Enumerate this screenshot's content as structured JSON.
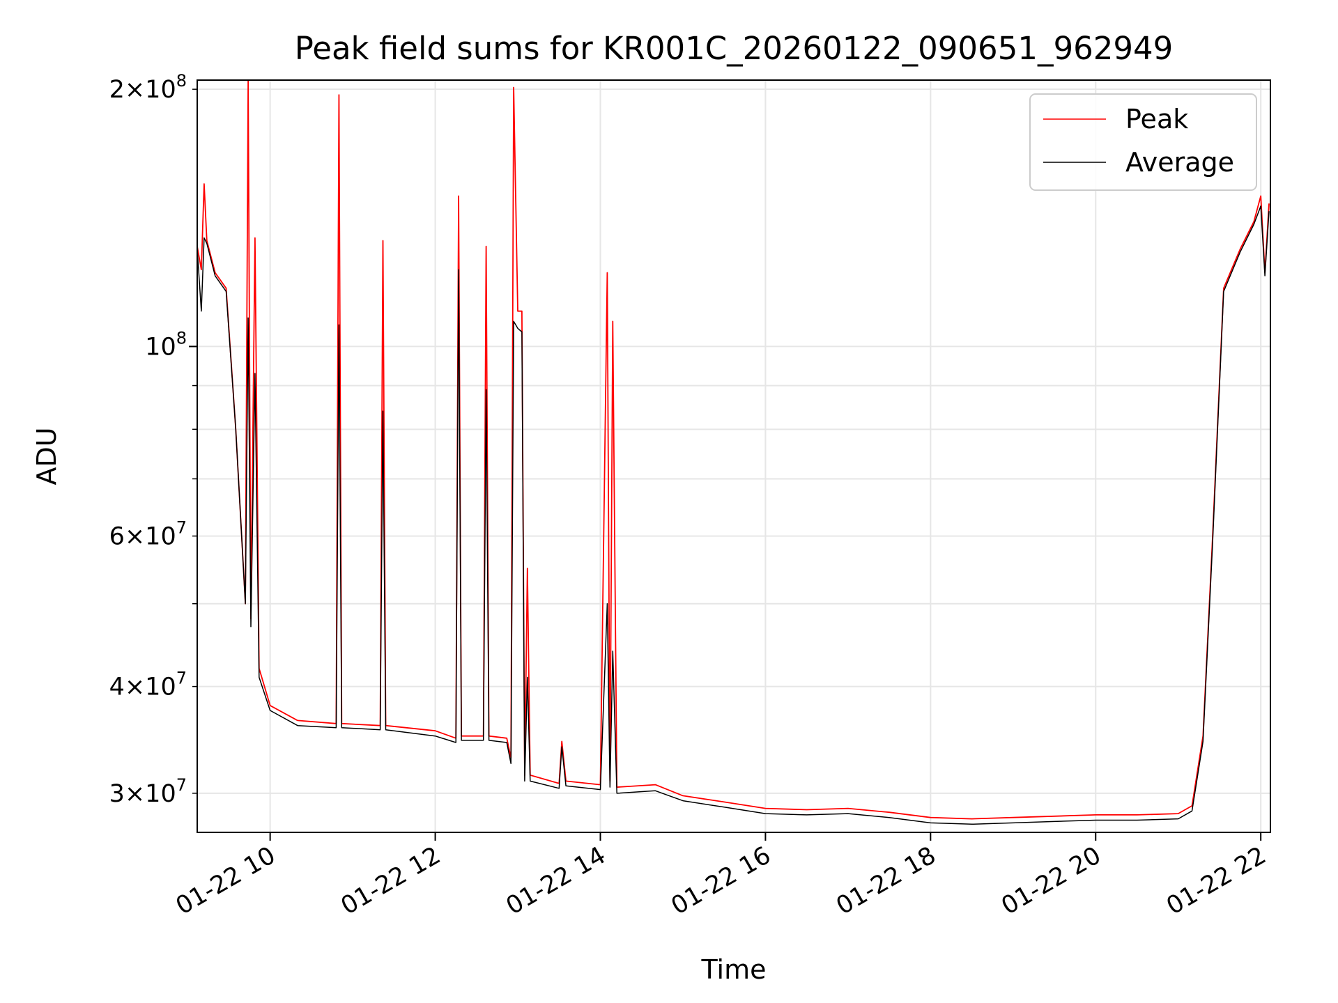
{
  "chart_data": {
    "type": "line",
    "title": "Peak field sums for KR001C_20260122_090651_962949",
    "xlabel": "Time",
    "ylabel": "ADU",
    "yscale": "log",
    "xlim": [
      "01-22 09:07",
      "01-22 22:07"
    ],
    "ylim": [
      27000000,
      205000000
    ],
    "grid": true,
    "legend_position": "top-right",
    "x_ticks": [
      {
        "value": "01-22 10:00",
        "label": "01-22 10"
      },
      {
        "value": "01-22 12:00",
        "label": "01-22 12"
      },
      {
        "value": "01-22 14:00",
        "label": "01-22 14"
      },
      {
        "value": "01-22 16:00",
        "label": "01-22 16"
      },
      {
        "value": "01-22 18:00",
        "label": "01-22 18"
      },
      {
        "value": "01-22 20:00",
        "label": "01-22 20"
      },
      {
        "value": "01-22 22:00",
        "label": "01-22 22"
      }
    ],
    "y_ticks": [
      {
        "value": 30000000,
        "mant": "3",
        "exp": "7"
      },
      {
        "value": 40000000,
        "mant": "4",
        "exp": "7"
      },
      {
        "value": 60000000,
        "mant": "6",
        "exp": "7"
      },
      {
        "value": 100000000,
        "mant": "",
        "exp": "8"
      },
      {
        "value": 200000000,
        "mant": "2",
        "exp": "8"
      }
    ],
    "series": [
      {
        "name": "Peak",
        "color": "#ff0000",
        "points": [
          [
            "01-22 09:07",
            131000000
          ],
          [
            "01-22 09:10",
            123000000
          ],
          [
            "01-22 09:12",
            155000000
          ],
          [
            "01-22 09:14",
            133000000
          ],
          [
            "01-22 09:20",
            122000000
          ],
          [
            "01-22 09:28",
            117000000
          ],
          [
            "01-22 09:35",
            80000000
          ],
          [
            "01-22 09:42",
            50000000
          ],
          [
            "01-22 09:44",
            205000000
          ],
          [
            "01-22 09:46",
            48000000
          ],
          [
            "01-22 09:49",
            134000000
          ],
          [
            "01-22 09:52",
            42000000
          ],
          [
            "01-22 10:00",
            38000000
          ],
          [
            "01-22 10:20",
            36500000
          ],
          [
            "01-22 10:48",
            36200000
          ],
          [
            "01-22 10:50",
            197000000
          ],
          [
            "01-22 10:52",
            36200000
          ],
          [
            "01-22 11:20",
            36000000
          ],
          [
            "01-22 11:22",
            133000000
          ],
          [
            "01-22 11:24",
            36000000
          ],
          [
            "01-22 12:00",
            35500000
          ],
          [
            "01-22 12:15",
            34800000
          ],
          [
            "01-22 12:17",
            150000000
          ],
          [
            "01-22 12:19",
            35000000
          ],
          [
            "01-22 12:35",
            35000000
          ],
          [
            "01-22 12:37",
            131000000
          ],
          [
            "01-22 12:39",
            35000000
          ],
          [
            "01-22 12:52",
            34800000
          ],
          [
            "01-22 12:55",
            33000000
          ],
          [
            "01-22 12:57",
            201000000
          ],
          [
            "01-22 13:00",
            110000000
          ],
          [
            "01-22 13:03",
            110000000
          ],
          [
            "01-22 13:05",
            31500000
          ],
          [
            "01-22 13:07",
            55000000
          ],
          [
            "01-22 13:09",
            31500000
          ],
          [
            "01-22 13:30",
            30800000
          ],
          [
            "01-22 13:32",
            34500000
          ],
          [
            "01-22 13:35",
            31000000
          ],
          [
            "01-22 14:00",
            30700000
          ],
          [
            "01-22 14:05",
            122000000
          ],
          [
            "01-22 14:07",
            31000000
          ],
          [
            "01-22 14:09",
            107000000
          ],
          [
            "01-22 14:12",
            30500000
          ],
          [
            "01-22 14:40",
            30700000
          ],
          [
            "01-22 15:00",
            29800000
          ],
          [
            "01-22 15:30",
            29300000
          ],
          [
            "01-22 16:00",
            28800000
          ],
          [
            "01-22 16:30",
            28700000
          ],
          [
            "01-22 17:00",
            28800000
          ],
          [
            "01-22 17:30",
            28500000
          ],
          [
            "01-22 18:00",
            28100000
          ],
          [
            "01-22 18:30",
            28000000
          ],
          [
            "01-22 19:00",
            28100000
          ],
          [
            "01-22 19:30",
            28200000
          ],
          [
            "01-22 20:00",
            28300000
          ],
          [
            "01-22 20:30",
            28300000
          ],
          [
            "01-22 21:00",
            28400000
          ],
          [
            "01-22 21:10",
            29000000
          ],
          [
            "01-22 21:18",
            35000000
          ],
          [
            "01-22 21:25",
            60000000
          ],
          [
            "01-22 21:33",
            117000000
          ],
          [
            "01-22 21:45",
            130000000
          ],
          [
            "01-22 21:55",
            140000000
          ],
          [
            "01-22 22:00",
            150000000
          ],
          [
            "01-22 22:03",
            122000000
          ],
          [
            "01-22 22:06",
            147000000
          ]
        ]
      },
      {
        "name": "Average",
        "color": "#000000",
        "points": [
          [
            "01-22 09:07",
            130000000
          ],
          [
            "01-22 09:10",
            110000000
          ],
          [
            "01-22 09:12",
            134000000
          ],
          [
            "01-22 09:14",
            132000000
          ],
          [
            "01-22 09:20",
            121000000
          ],
          [
            "01-22 09:28",
            116000000
          ],
          [
            "01-22 09:35",
            80000000
          ],
          [
            "01-22 09:42",
            50000000
          ],
          [
            "01-22 09:44",
            108000000
          ],
          [
            "01-22 09:46",
            47000000
          ],
          [
            "01-22 09:49",
            93000000
          ],
          [
            "01-22 09:52",
            41000000
          ],
          [
            "01-22 10:00",
            37500000
          ],
          [
            "01-22 10:20",
            36000000
          ],
          [
            "01-22 10:48",
            35800000
          ],
          [
            "01-22 10:50",
            106000000
          ],
          [
            "01-22 10:52",
            35800000
          ],
          [
            "01-22 11:20",
            35600000
          ],
          [
            "01-22 11:22",
            84000000
          ],
          [
            "01-22 11:24",
            35600000
          ],
          [
            "01-22 12:00",
            35000000
          ],
          [
            "01-22 12:15",
            34400000
          ],
          [
            "01-22 12:17",
            123000000
          ],
          [
            "01-22 12:19",
            34600000
          ],
          [
            "01-22 12:35",
            34600000
          ],
          [
            "01-22 12:37",
            89000000
          ],
          [
            "01-22 12:39",
            34600000
          ],
          [
            "01-22 12:52",
            34400000
          ],
          [
            "01-22 12:55",
            32500000
          ],
          [
            "01-22 12:57",
            107000000
          ],
          [
            "01-22 13:00",
            105000000
          ],
          [
            "01-22 13:03",
            104000000
          ],
          [
            "01-22 13:05",
            31000000
          ],
          [
            "01-22 13:07",
            41000000
          ],
          [
            "01-22 13:09",
            31000000
          ],
          [
            "01-22 13:30",
            30400000
          ],
          [
            "01-22 13:32",
            34000000
          ],
          [
            "01-22 13:35",
            30600000
          ],
          [
            "01-22 14:00",
            30300000
          ],
          [
            "01-22 14:05",
            50000000
          ],
          [
            "01-22 14:07",
            30500000
          ],
          [
            "01-22 14:09",
            44000000
          ],
          [
            "01-22 14:12",
            30000000
          ],
          [
            "01-22 14:40",
            30200000
          ],
          [
            "01-22 15:00",
            29400000
          ],
          [
            "01-22 15:30",
            28900000
          ],
          [
            "01-22 16:00",
            28400000
          ],
          [
            "01-22 16:30",
            28300000
          ],
          [
            "01-22 17:00",
            28400000
          ],
          [
            "01-22 17:30",
            28100000
          ],
          [
            "01-22 18:00",
            27700000
          ],
          [
            "01-22 18:30",
            27600000
          ],
          [
            "01-22 19:00",
            27700000
          ],
          [
            "01-22 19:30",
            27800000
          ],
          [
            "01-22 20:00",
            27900000
          ],
          [
            "01-22 20:30",
            27900000
          ],
          [
            "01-22 21:00",
            28000000
          ],
          [
            "01-22 21:10",
            28600000
          ],
          [
            "01-22 21:18",
            34500000
          ],
          [
            "01-22 21:25",
            59000000
          ],
          [
            "01-22 21:33",
            116000000
          ],
          [
            "01-22 21:45",
            129000000
          ],
          [
            "01-22 21:55",
            139000000
          ],
          [
            "01-22 22:00",
            146000000
          ],
          [
            "01-22 22:03",
            121000000
          ],
          [
            "01-22 22:06",
            144000000
          ]
        ]
      }
    ]
  }
}
